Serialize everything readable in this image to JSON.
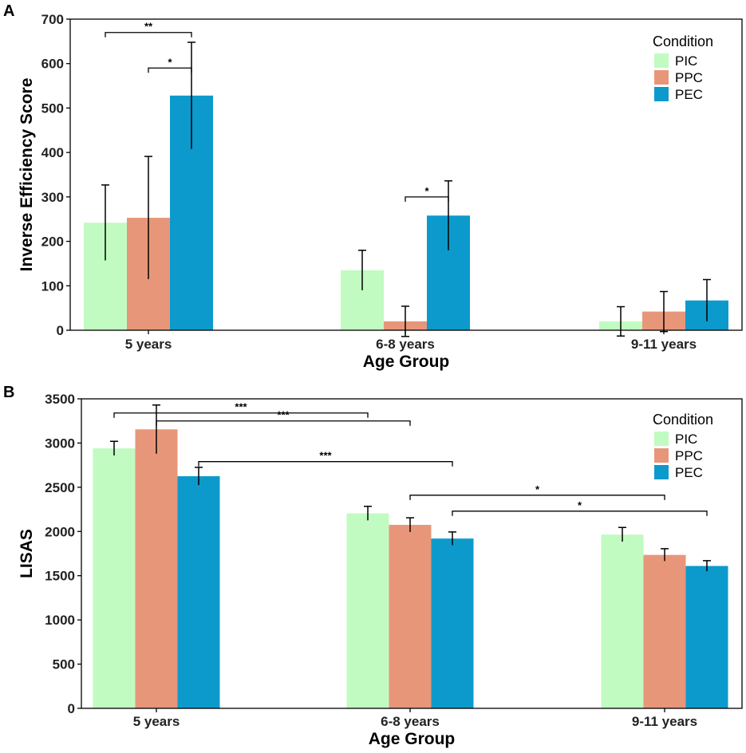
{
  "figure": {
    "colors": {
      "PIC": "#c1fbc1",
      "PPC": "#e8967a",
      "PEC": "#0c9acd"
    }
  },
  "chart_data": [
    {
      "panel": "A",
      "type": "bar",
      "title": "",
      "xlabel": "Age Group",
      "ylabel": "Inverse Efficiency Score",
      "ylim": [
        0,
        700
      ],
      "yticks": [
        0,
        100,
        200,
        300,
        400,
        500,
        600,
        700
      ],
      "categories": [
        "5 years",
        "6-8 years",
        "9-11 years"
      ],
      "legend": {
        "title": "Condition",
        "position": "top-right"
      },
      "series": [
        {
          "name": "PIC",
          "values": [
            242,
            135,
            20
          ],
          "errors": [
            85,
            45,
            33
          ]
        },
        {
          "name": "PPC",
          "values": [
            253,
            20,
            42
          ],
          "errors": [
            138,
            34,
            45
          ]
        },
        {
          "name": "PEC",
          "values": [
            528,
            258,
            67
          ],
          "errors": [
            120,
            78,
            47
          ]
        }
      ],
      "significance": [
        {
          "from": [
            0,
            "PIC"
          ],
          "to": [
            0,
            "PEC"
          ],
          "y": 670,
          "label": "**"
        },
        {
          "from": [
            0,
            "PPC"
          ],
          "to": [
            0,
            "PEC"
          ],
          "y": 590,
          "label": "*"
        },
        {
          "from": [
            1,
            "PPC"
          ],
          "to": [
            1,
            "PEC"
          ],
          "y": 300,
          "label": "*"
        }
      ]
    },
    {
      "panel": "B",
      "type": "bar",
      "title": "",
      "xlabel": "Age Group",
      "ylabel": "LISAS",
      "ylim": [
        0,
        3500
      ],
      "yticks": [
        0,
        500,
        1000,
        1500,
        2000,
        2500,
        3000,
        3500
      ],
      "categories": [
        "5 years",
        "6-8 years",
        "9-11 years"
      ],
      "legend": {
        "title": "Condition",
        "position": "top-right"
      },
      "series": [
        {
          "name": "PIC",
          "values": [
            2940,
            2205,
            1965
          ],
          "errors": [
            80,
            80,
            80
          ]
        },
        {
          "name": "PPC",
          "values": [
            3155,
            2075,
            1735
          ],
          "errors": [
            275,
            80,
            70
          ]
        },
        {
          "name": "PEC",
          "values": [
            2625,
            1920,
            1610
          ],
          "errors": [
            100,
            75,
            60
          ]
        }
      ],
      "significance": [
        {
          "from": [
            0,
            "PIC"
          ],
          "to": [
            1,
            "PIC"
          ],
          "y": 3340,
          "label": "***"
        },
        {
          "from": [
            0,
            "PPC"
          ],
          "to": [
            1,
            "PPC"
          ],
          "y": 3250,
          "label": "***"
        },
        {
          "from": [
            0,
            "PEC"
          ],
          "to": [
            1,
            "PEC"
          ],
          "y": 2790,
          "label": "***"
        },
        {
          "from": [
            1,
            "PPC"
          ],
          "to": [
            2,
            "PPC"
          ],
          "y": 2410,
          "label": "*"
        },
        {
          "from": [
            1,
            "PEC"
          ],
          "to": [
            2,
            "PEC"
          ],
          "y": 2230,
          "label": "*"
        }
      ]
    }
  ]
}
